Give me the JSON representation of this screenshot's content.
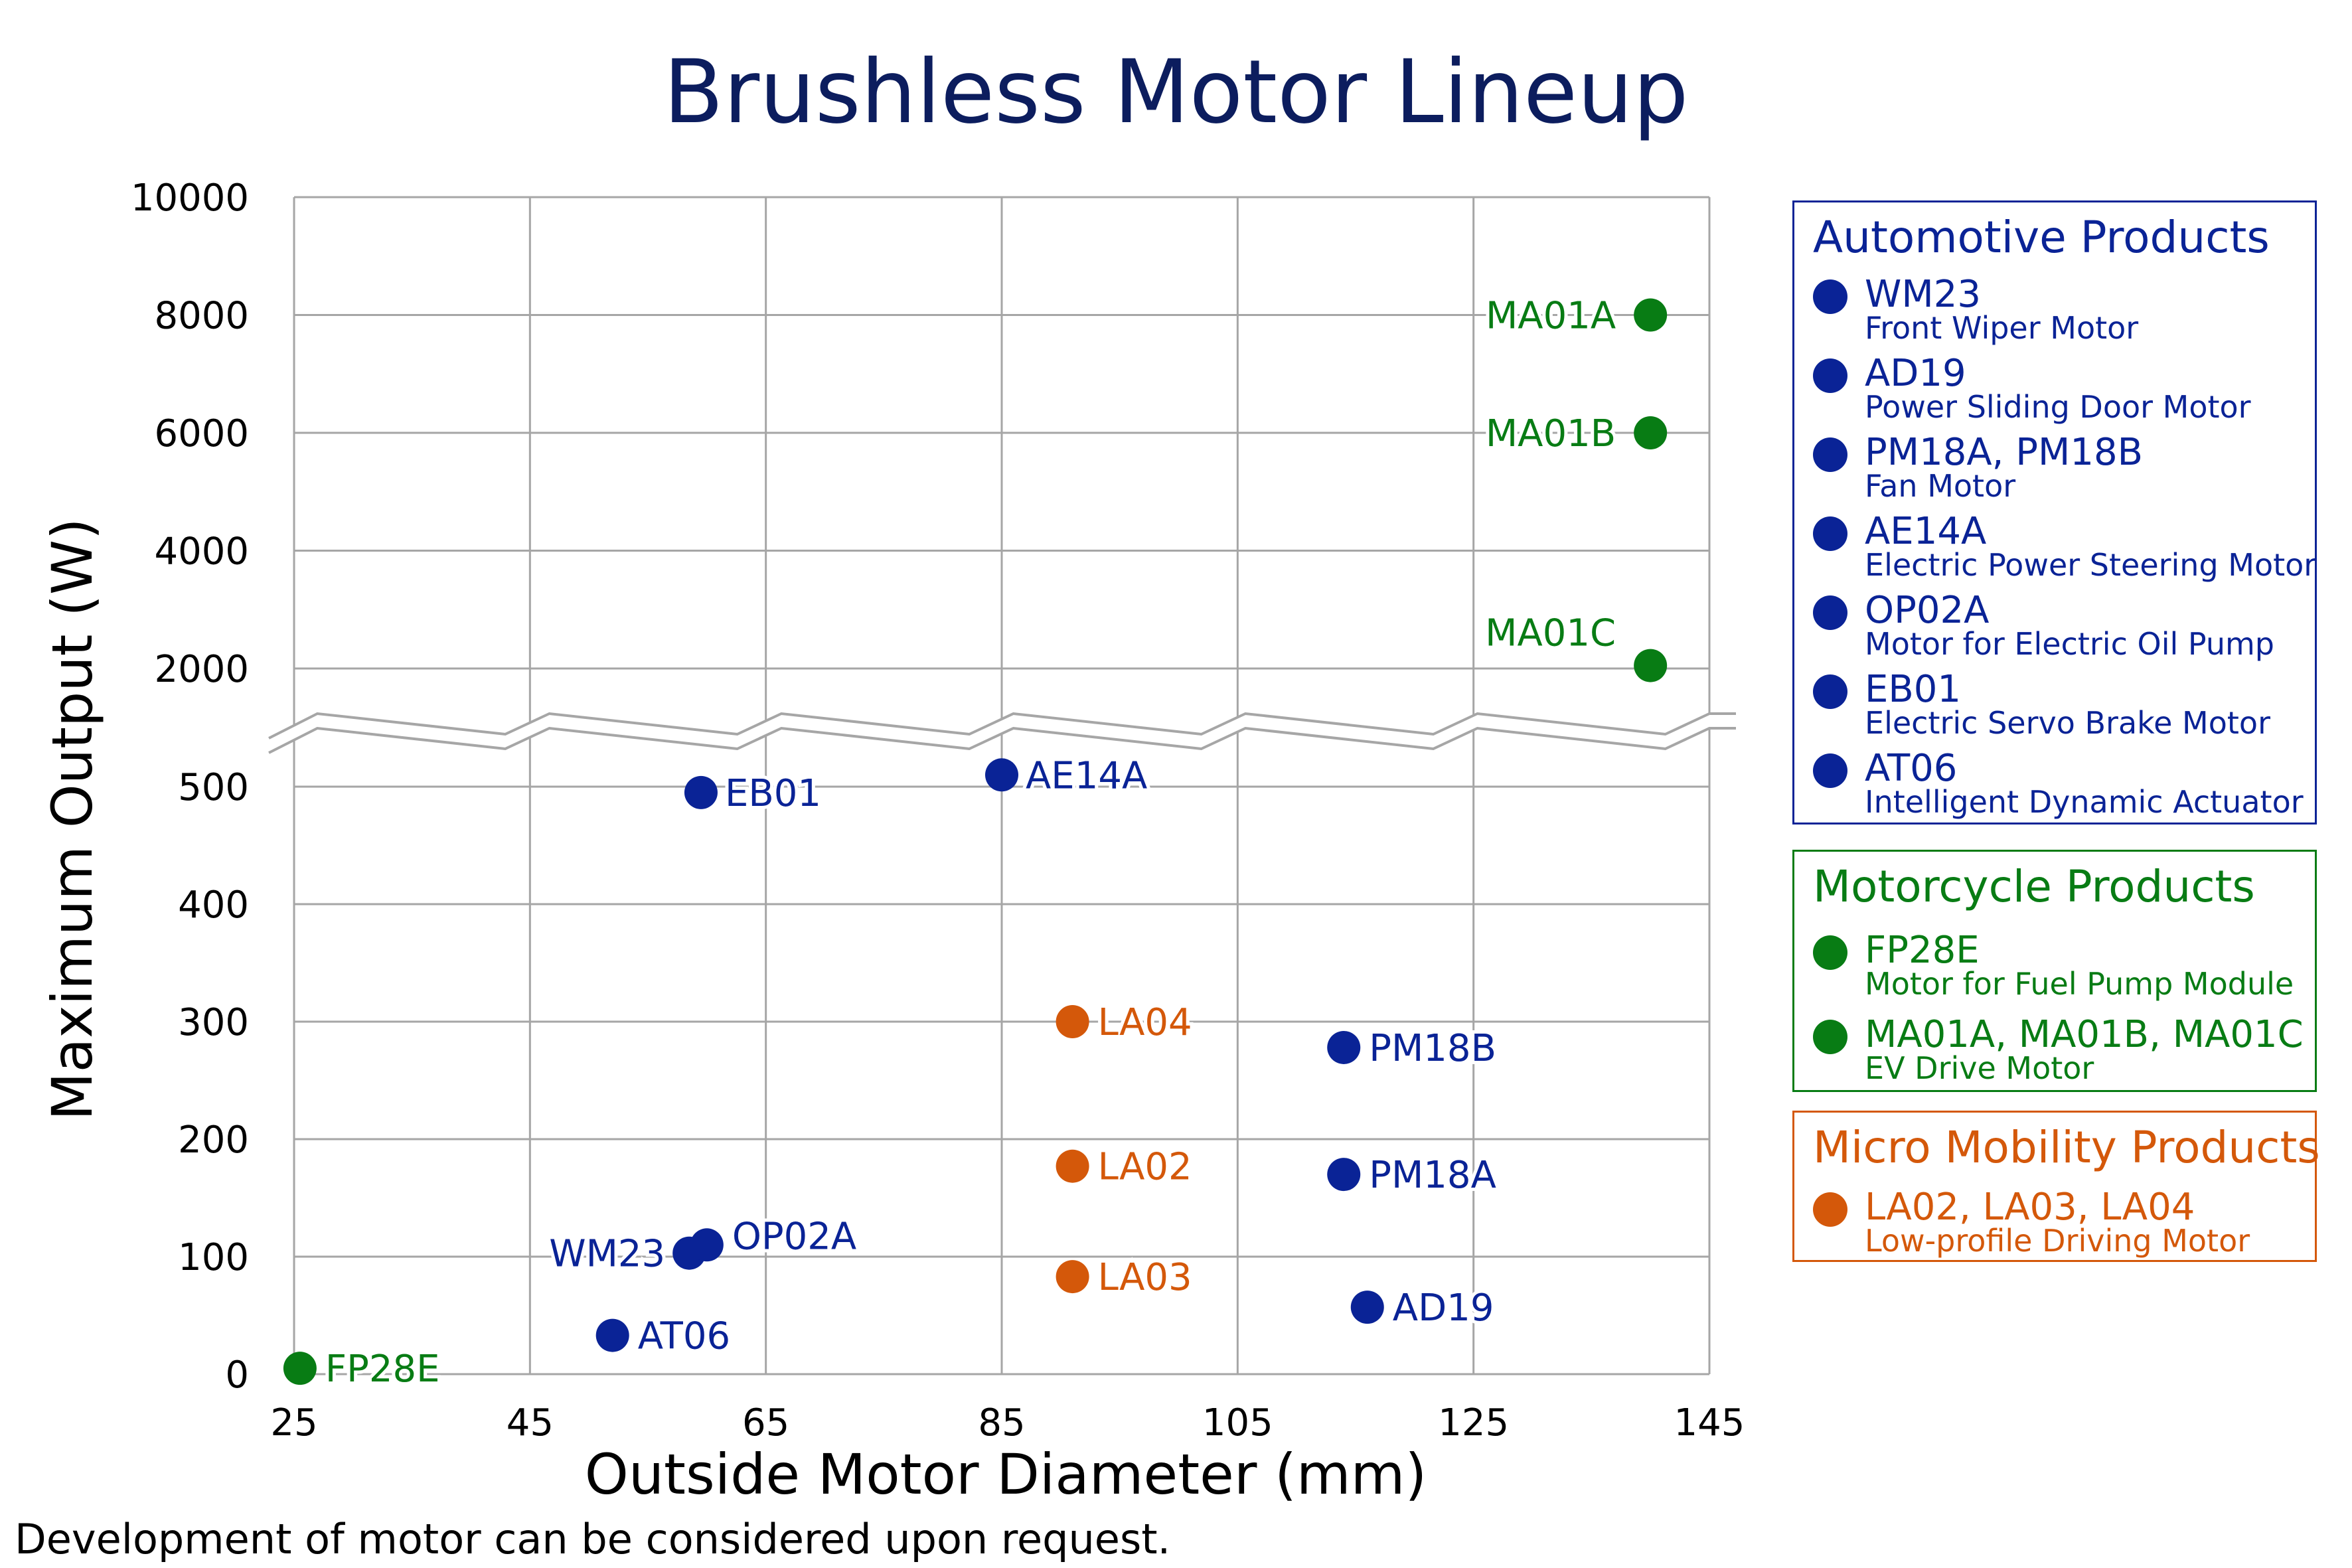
{
  "chart_data": {
    "type": "scatter",
    "title": "Brushless Motor Lineup",
    "xlabel": "Outside Motor Diameter (mm)",
    "ylabel": "Maximum Output (W)",
    "xlim": [
      25,
      145
    ],
    "x_ticks": [
      "25",
      "45",
      "65",
      "85",
      "105",
      "125",
      "145"
    ],
    "y_ticks_lower": [
      "0",
      "100",
      "200",
      "300",
      "400",
      "500"
    ],
    "y_ticks_upper": [
      "2000",
      "4000",
      "6000",
      "8000",
      "10000"
    ],
    "ylim_lower": [
      0,
      500
    ],
    "ylim_upper": [
      0,
      10000
    ],
    "broken_axis": true,
    "grid": true,
    "legend_position": "right",
    "series": [
      {
        "name": "Automotive Products",
        "color": "#0a2396",
        "points": [
          {
            "label": "WM23",
            "x": 58.5,
            "y": 103
          },
          {
            "label": "OP02A",
            "x": 60,
            "y": 110
          },
          {
            "label": "EB01",
            "x": 59.5,
            "y": 495
          },
          {
            "label": "AE14A",
            "x": 85,
            "y": 510
          },
          {
            "label": "AT06",
            "x": 52,
            "y": 33
          },
          {
            "label": "PM18B",
            "x": 114,
            "y": 278
          },
          {
            "label": "PM18A",
            "x": 114,
            "y": 170
          },
          {
            "label": "AD19",
            "x": 116,
            "y": 57
          }
        ]
      },
      {
        "name": "Motorcycle Products",
        "color": "#087c14",
        "points": [
          {
            "label": "FP28E",
            "x": 25.5,
            "y": 5
          },
          {
            "label": "MA01A",
            "x": 140,
            "y": 8000
          },
          {
            "label": "MA01B",
            "x": 140,
            "y": 6000
          },
          {
            "label": "MA01C",
            "x": 140,
            "y": 2050
          }
        ]
      },
      {
        "name": "Micro Mobility Products",
        "color": "#d4580a",
        "points": [
          {
            "label": "LA04",
            "x": 91,
            "y": 300
          },
          {
            "label": "LA02",
            "x": 91,
            "y": 177
          },
          {
            "label": "LA03",
            "x": 91,
            "y": 83
          }
        ]
      }
    ]
  },
  "legend": {
    "automotive": {
      "title": "Automotive Products",
      "color": "#0a2396",
      "items": [
        {
          "name": "WM23",
          "desc": "Front Wiper Motor"
        },
        {
          "name": "AD19",
          "desc": "Power Sliding Door Motor"
        },
        {
          "name": "PM18A, PM18B",
          "desc": "Fan Motor"
        },
        {
          "name": "AE14A",
          "desc": "Electric Power Steering Motor"
        },
        {
          "name": "OP02A",
          "desc": "Motor for Electric Oil Pump"
        },
        {
          "name": "EB01",
          "desc": "Electric Servo Brake Motor"
        },
        {
          "name": "AT06",
          "desc": "Intelligent Dynamic Actuator"
        }
      ]
    },
    "motorcycle": {
      "title": "Motorcycle Products",
      "color": "#087c14",
      "items": [
        {
          "name": "FP28E",
          "desc": "Motor for Fuel Pump Module"
        },
        {
          "name": "MA01A, MA01B, MA01C",
          "desc": "EV Drive Motor"
        }
      ]
    },
    "micro": {
      "title": "Micro Mobility Products",
      "color": "#d4580a",
      "items": [
        {
          "name": "LA02, LA03, LA04",
          "desc": "Low-profile Driving Motor"
        }
      ]
    }
  },
  "footnote": "Development of motor can be considered upon request."
}
